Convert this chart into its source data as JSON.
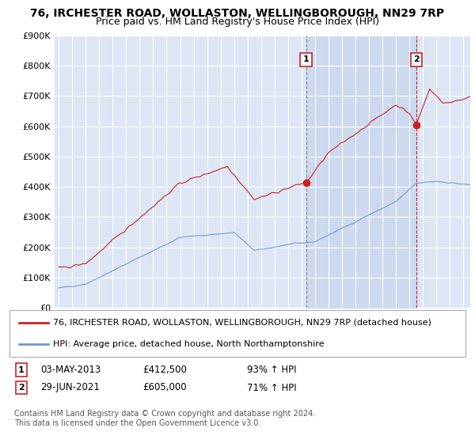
{
  "title": "76, IRCHESTER ROAD, WOLLASTON, WELLINGBOROUGH, NN29 7RP",
  "subtitle": "Price paid vs. HM Land Registry's House Price Index (HPI)",
  "ylim": [
    0,
    900000
  ],
  "yticks": [
    0,
    100000,
    200000,
    300000,
    400000,
    500000,
    600000,
    700000,
    800000,
    900000
  ],
  "ytick_labels": [
    "£0",
    "£100K",
    "£200K",
    "£300K",
    "£400K",
    "£500K",
    "£600K",
    "£700K",
    "£800K",
    "£900K"
  ],
  "background_color": "#ffffff",
  "plot_bg_color": "#dce6f5",
  "grid_color": "#ffffff",
  "shade_color": "#ccd9ee",
  "red_line_color": "#cc2222",
  "blue_line_color": "#7799cc",
  "marker1_year": 2013.33,
  "marker2_year": 2021.5,
  "marker1_price": 412500,
  "marker2_price": 605000,
  "legend_red": "76, IRCHESTER ROAD, WOLLASTON, WELLINGBOROUGH, NN29 7RP (detached house)",
  "legend_blue": "HPI: Average price, detached house, North Northamptonshire",
  "sale1_date": "03-MAY-2013",
  "sale1_price": "£412,500",
  "sale1_hpi": "93% ↑ HPI",
  "sale2_date": "29-JUN-2021",
  "sale2_price": "£605,000",
  "sale2_hpi": "71% ↑ HPI",
  "footer": "Contains HM Land Registry data © Crown copyright and database right 2024.\nThis data is licensed under the Open Government Licence v3.0.",
  "title_fontsize": 10,
  "subtitle_fontsize": 9,
  "tick_fontsize": 8,
  "legend_fontsize": 8
}
